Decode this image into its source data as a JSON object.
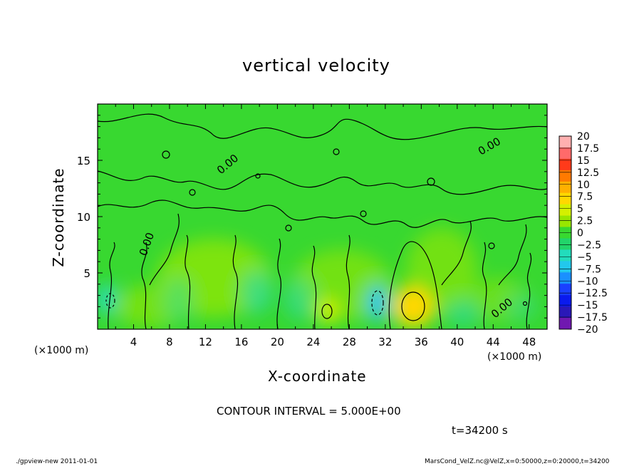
{
  "chart_data": {
    "type": "heatmap",
    "title": "vertical velocity",
    "xlabel": "X-coordinate",
    "ylabel": "Z-coordinate",
    "x_unit": "(×1000 m)",
    "xlim": [
      0,
      50
    ],
    "ylim": [
      0,
      20
    ],
    "x_ticks": [
      "4",
      "8",
      "12",
      "16",
      "20",
      "24",
      "28",
      "32",
      "36",
      "40",
      "44",
      "48"
    ],
    "y_ticks": [
      "5",
      "10",
      "15"
    ],
    "contour_labels": [
      "0.00",
      "0.00",
      "0.00",
      "0.00"
    ],
    "colorbar": {
      "levels": [
        "20",
        "17.5",
        "15",
        "12.5",
        "10",
        "7.5",
        "5",
        "2.5",
        "0",
        "-2.5",
        "-5",
        "-7.5",
        "-10",
        "-12.5",
        "-15",
        "-17.5",
        "-20"
      ],
      "colors": [
        "#ffb0b0",
        "#ff6a6a",
        "#ff3a1a",
        "#ff7a00",
        "#ffb000",
        "#ffd800",
        "#d4f000",
        "#98e600",
        "#38d830",
        "#22d46a",
        "#22dcbc",
        "#22c8ec",
        "#1a90ff",
        "#1a40ff",
        "#0a1aee",
        "#2a18b8",
        "#7018b0"
      ]
    },
    "features": [
      {
        "x": 34.5,
        "z": 2.2,
        "w": "positive",
        "value": 10
      },
      {
        "x": 25.5,
        "z": 1.5,
        "w": "positive",
        "value": 5
      },
      {
        "x": 30.5,
        "z": 2.5,
        "w": "negative",
        "value": -5
      },
      {
        "x": 1.5,
        "z": 2.5,
        "w": "negative",
        "value": -5
      }
    ]
  },
  "annotations": {
    "contour_interval": "CONTOUR INTERVAL = 5.000E+00",
    "time": "t=34200 s",
    "footer_left": "./gpview-new   2011-01-01",
    "footer_right": "MarsCond_VelZ.nc@VelZ,x=0:50000,z=0:20000,t=34200"
  }
}
